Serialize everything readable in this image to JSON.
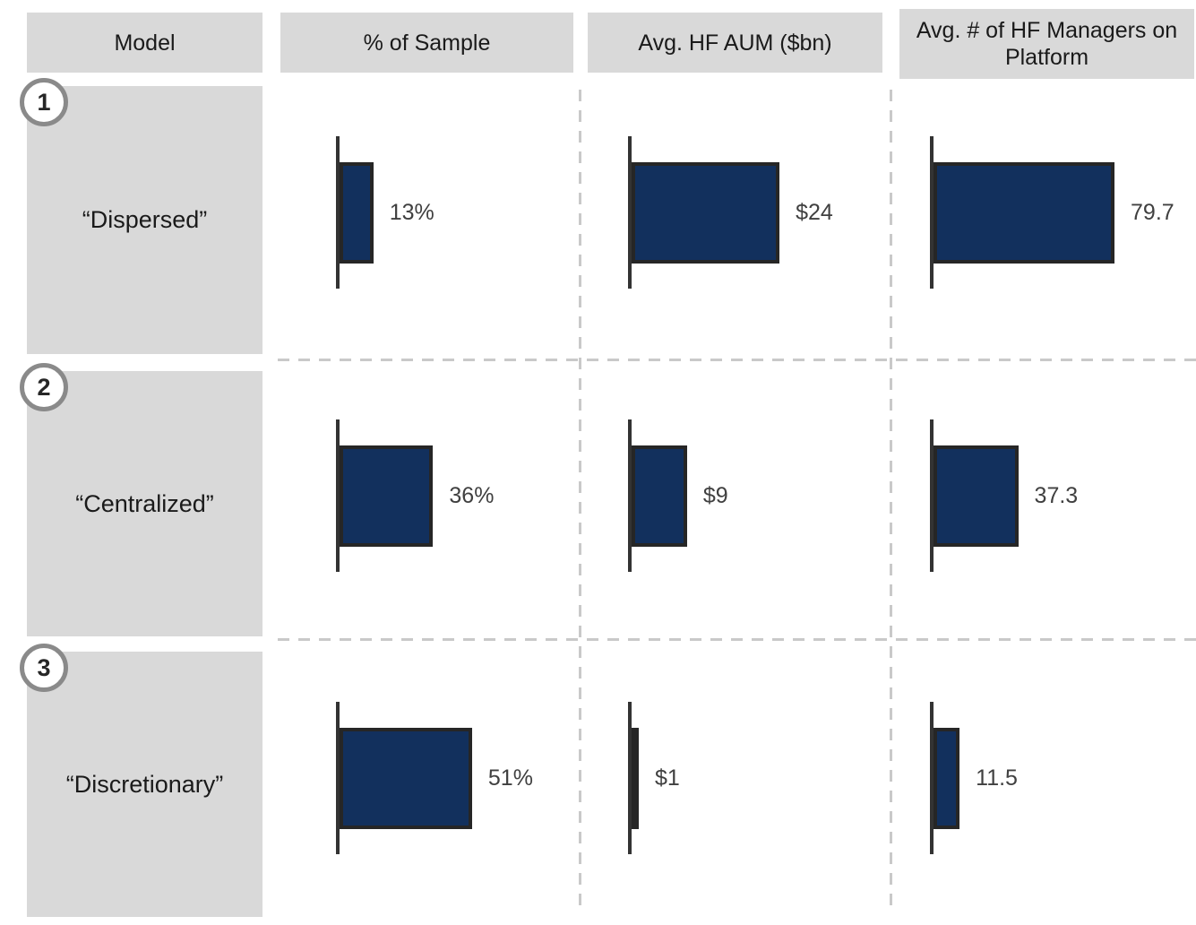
{
  "headers": [
    "Model",
    "% of Sample",
    "Avg. HF AUM ($bn)",
    "Avg. # of HF Managers on Platform"
  ],
  "rows": [
    {
      "number": "1",
      "label": "“Dispersed”"
    },
    {
      "number": "2",
      "label": "“Centralized”"
    },
    {
      "number": "3",
      "label": "“Discretionary”"
    }
  ],
  "colors": {
    "bar_fill": "#12305d",
    "bar_border": "#262626",
    "axis": "#333333",
    "box_gray": "#d9d9d9",
    "dashed_separator": "#c9c9c9",
    "badge_border": "#8a8a8a",
    "value_text": "#404040"
  },
  "chart_data": {
    "type": "bar",
    "orientation": "horizontal",
    "categories": [
      "“Dispersed”",
      "“Centralized”",
      "“Discretionary”"
    ],
    "series": [
      {
        "name": "% of Sample",
        "values": [
          13,
          36,
          51
        ],
        "labels": [
          "13%",
          "36%",
          "51%"
        ]
      },
      {
        "name": "Avg. HF AUM ($bn)",
        "values": [
          24,
          9,
          1
        ],
        "labels": [
          "$24",
          "$9",
          "$1"
        ]
      },
      {
        "name": "Avg. # of HF Managers on Platform",
        "values": [
          79.7,
          37.3,
          11.5
        ],
        "labels": [
          "79.7",
          "37.3",
          "11.5"
        ]
      }
    ],
    "title": "",
    "xlabel": "",
    "ylabel": "",
    "grid": "dashed row/column separators",
    "legend_position": "none",
    "value_labels": "right of each bar"
  }
}
